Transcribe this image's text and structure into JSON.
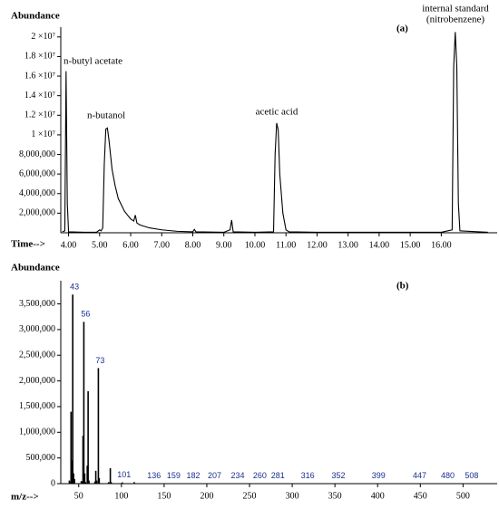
{
  "chart_data": [
    {
      "type": "line",
      "title": "(a)",
      "ylabel": "Abundance",
      "xlabel": "Time-->",
      "annotations": [
        "n-butyl acetate",
        "n-butanol",
        "acetic acid",
        "internal standard",
        "(nitrobenzene)"
      ],
      "x": [
        3.8,
        3.88,
        3.92,
        3.96,
        4.0,
        4.5,
        4.9,
        5.0,
        5.05,
        5.1,
        5.15,
        5.2,
        5.25,
        5.3,
        5.4,
        5.5,
        5.6,
        5.8,
        6.0,
        6.1,
        6.15,
        6.2,
        6.3,
        6.6,
        7.0,
        7.5,
        8.0,
        8.05,
        8.1,
        9.0,
        9.2,
        9.25,
        9.3,
        10.0,
        10.6,
        10.65,
        10.7,
        10.75,
        10.8,
        10.9,
        11.0,
        11.1,
        12.0,
        16.0,
        16.35,
        16.4,
        16.45,
        16.5,
        16.55,
        16.6,
        17.5
      ],
      "series": [
        {
          "color": "#000000",
          "values": [
            100000,
            200000,
            16500000,
            3000000,
            100000,
            50000,
            50000,
            300000,
            200000,
            500000,
            7000000,
            10600000,
            10700000,
            9500000,
            6500000,
            4800000,
            3500000,
            2200000,
            1400000,
            1200000,
            1800000,
            1000000,
            800000,
            500000,
            300000,
            150000,
            100000,
            350000,
            100000,
            50000,
            300000,
            1300000,
            100000,
            50000,
            100000,
            8000000,
            11200000,
            10500000,
            6000000,
            2000000,
            300000,
            100000,
            50000,
            50000,
            300000,
            17000000,
            20500000,
            17000000,
            3000000,
            200000,
            50000
          ]
        }
      ],
      "xlim": [
        3.75,
        17.8
      ],
      "ylim": [
        0,
        21000000
      ],
      "xticks": [
        {
          "value": 4,
          "label": "4.00"
        },
        {
          "value": 5,
          "label": "5.00"
        },
        {
          "value": 6,
          "label": "6.00"
        },
        {
          "value": 7,
          "label": "7.00"
        },
        {
          "value": 8,
          "label": "8.00"
        },
        {
          "value": 9,
          "label": "9.00"
        },
        {
          "value": 10,
          "label": "10.00"
        },
        {
          "value": 11,
          "label": "11.00"
        },
        {
          "value": 12,
          "label": "12.00"
        },
        {
          "value": 13,
          "label": "13.00"
        },
        {
          "value": 14,
          "label": "14.00"
        },
        {
          "value": 15,
          "label": "15.00"
        },
        {
          "value": 16,
          "label": "16.00"
        }
      ],
      "yticks": [
        {
          "value": 2000000,
          "label": "2,000,000"
        },
        {
          "value": 4000000,
          "label": "4,000,000"
        },
        {
          "value": 6000000,
          "label": "6,000,000"
        },
        {
          "value": 8000000,
          "label": "8,000,000"
        },
        {
          "value": 10000000,
          "label": "1 ×10⁷"
        },
        {
          "value": 12000000,
          "label": "1.2 ×10⁷"
        },
        {
          "value": 14000000,
          "label": "1.4 ×10⁷"
        },
        {
          "value": 16000000,
          "label": "1.6 ×10⁷"
        },
        {
          "value": 18000000,
          "label": "1.8 ×10⁷"
        },
        {
          "value": 20000000,
          "label": "2 ×10⁷"
        }
      ]
    },
    {
      "type": "bar",
      "title": "(b)",
      "ylabel": "Abundance",
      "xlabel": "m/z-->",
      "label_color": "#1a2f8f",
      "x": [
        39,
        40,
        41,
        42,
        43,
        44,
        45,
        53,
        54,
        55,
        56,
        57,
        58,
        60,
        61,
        62,
        69,
        70,
        71,
        73,
        74,
        85,
        87,
        88,
        101,
        115,
        136,
        159,
        182,
        207,
        234,
        260,
        281,
        316,
        352,
        399,
        447,
        480,
        508
      ],
      "x_labels": [
        null,
        null,
        null,
        null,
        43,
        null,
        null,
        null,
        null,
        null,
        56,
        null,
        null,
        null,
        null,
        null,
        null,
        null,
        null,
        73,
        null,
        null,
        null,
        null,
        101,
        null,
        136,
        159,
        182,
        207,
        234,
        260,
        281,
        316,
        352,
        399,
        447,
        480,
        508
      ],
      "series": [
        {
          "color": "#000000",
          "values": [
            60000,
            30000,
            1400000,
            450000,
            3680000,
            200000,
            90000,
            50000,
            40000,
            930000,
            3150000,
            200000,
            30000,
            350000,
            1800000,
            60000,
            40000,
            250000,
            60000,
            2250000,
            110000,
            30000,
            300000,
            30000,
            25000,
            30000,
            8000,
            6000,
            5000,
            6000,
            5000,
            5000,
            6000,
            4000,
            4000,
            3000,
            3000,
            3000,
            3000
          ]
        }
      ],
      "xlim": [
        29,
        540
      ],
      "ylim": [
        0,
        3950000
      ],
      "xticks": [
        50,
        100,
        150,
        200,
        250,
        300,
        350,
        400,
        450,
        500
      ],
      "yticks": [
        0,
        {
          "value": 500000,
          "label": "500,000"
        },
        {
          "value": 1000000,
          "label": "1,000,000"
        },
        {
          "value": 1500000,
          "label": "1,500,000"
        },
        {
          "value": 2000000,
          "label": "2,000,000"
        },
        {
          "value": 2500000,
          "label": "2,500,000"
        },
        {
          "value": 3000000,
          "label": "3,000,000"
        },
        {
          "value": 3500000,
          "label": "3,500,000"
        }
      ]
    }
  ]
}
